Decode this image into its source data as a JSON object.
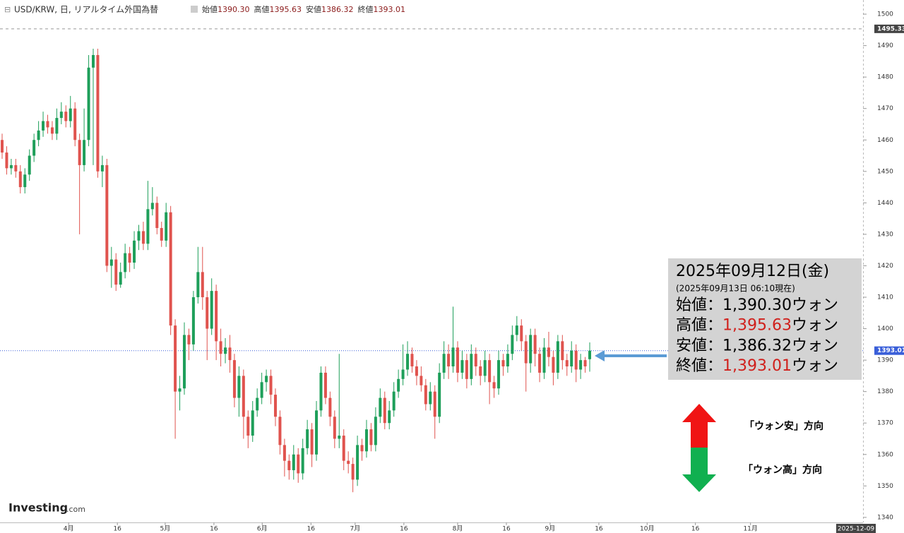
{
  "chart_data": {
    "type": "candlestick",
    "header": {
      "symbol": "USD/KRW, 日, リアルタイム外国為替",
      "fields": [
        {
          "label": "始値",
          "value": "1390.30"
        },
        {
          "label": "高値",
          "value": "1395.63"
        },
        {
          "label": "安値",
          "value": "1386.32"
        },
        {
          "label": "終値",
          "value": "1393.01"
        }
      ]
    },
    "up_color": "#1e9f5a",
    "down_color": "#e0534e",
    "ylim": [
      1338.4,
      1504.5
    ],
    "yticks": [
      1340,
      1350,
      1360,
      1370,
      1380,
      1390,
      1400,
      1410,
      1420,
      1430,
      1440,
      1450,
      1460,
      1470,
      1480,
      1490,
      1500
    ],
    "xlim": [
      -0.465,
      189
    ],
    "xticks": [
      {
        "value": 14.6,
        "label": "4月"
      },
      {
        "value": 25.3,
        "label": "16"
      },
      {
        "value": 35.8,
        "label": "5月"
      },
      {
        "value": 46.5,
        "label": "16"
      },
      {
        "value": 57.1,
        "label": "6月"
      },
      {
        "value": 67.8,
        "label": "16"
      },
      {
        "value": 77.5,
        "label": "7月"
      },
      {
        "value": 88.2,
        "label": "16"
      },
      {
        "value": 100,
        "label": "8月"
      },
      {
        "value": 110.7,
        "label": "16"
      },
      {
        "value": 120.3,
        "label": "9月"
      },
      {
        "value": 131,
        "label": "16"
      },
      {
        "value": 141.6,
        "label": "10月"
      },
      {
        "value": 152.2,
        "label": "16"
      },
      {
        "value": 164.3,
        "label": "11月"
      }
    ],
    "date_label": "2025-12-09",
    "price_lines": [
      {
        "value": 1495.33,
        "color": "#999999",
        "dash": "4,4",
        "label_bg": "#444444"
      },
      {
        "value": 1393.01,
        "color": "#3a5fd9",
        "dash": "1,2",
        "label_bg": "#3a5fd9"
      }
    ],
    "candles": [
      [
        1460,
        1462,
        1454,
        1456
      ],
      [
        1456,
        1458,
        1449,
        1451
      ],
      [
        1451,
        1454,
        1449,
        1452
      ],
      [
        1452,
        1454,
        1448,
        1450
      ],
      [
        1450,
        1452,
        1443,
        1445
      ],
      [
        1445,
        1451,
        1443,
        1449
      ],
      [
        1449,
        1457,
        1447,
        1455
      ],
      [
        1455,
        1462,
        1453,
        1460
      ],
      [
        1460,
        1466,
        1458,
        1463
      ],
      [
        1463,
        1469,
        1461,
        1466
      ],
      [
        1466,
        1468,
        1462,
        1464
      ],
      [
        1464,
        1466,
        1460,
        1462
      ],
      [
        1462,
        1470,
        1460,
        1467
      ],
      [
        1467,
        1472,
        1465,
        1469
      ],
      [
        1469,
        1471,
        1464,
        1466
      ],
      [
        1466,
        1474,
        1464,
        1470
      ],
      [
        1470,
        1472,
        1458,
        1460
      ],
      [
        1460,
        1462,
        1430,
        1452
      ],
      [
        1452,
        1470,
        1450,
        1460
      ],
      [
        1460,
        1487,
        1458,
        1483
      ],
      [
        1483,
        1489,
        1452,
        1487
      ],
      [
        1487,
        1489,
        1448,
        1450
      ],
      [
        1450,
        1455,
        1445,
        1452
      ],
      [
        1452,
        1454,
        1418,
        1420
      ],
      [
        1420,
        1426,
        1413,
        1422
      ],
      [
        1422,
        1424,
        1412,
        1414
      ],
      [
        1414,
        1421,
        1413,
        1418
      ],
      [
        1418,
        1427,
        1416,
        1424
      ],
      [
        1424,
        1426,
        1418,
        1421
      ],
      [
        1421,
        1431,
        1419,
        1428
      ],
      [
        1428,
        1433,
        1425,
        1431
      ],
      [
        1431,
        1434,
        1425,
        1427
      ],
      [
        1427,
        1447,
        1425,
        1438
      ],
      [
        1438,
        1445,
        1436,
        1440
      ],
      [
        1440,
        1442,
        1430,
        1432
      ],
      [
        1432,
        1434,
        1426,
        1428
      ],
      [
        1428,
        1440,
        1426,
        1437
      ],
      [
        1437,
        1439,
        1398,
        1401
      ],
      [
        1401,
        1403,
        1365,
        1380
      ],
      [
        1380,
        1385,
        1374,
        1381
      ],
      [
        1381,
        1402,
        1379,
        1398
      ],
      [
        1398,
        1400,
        1390,
        1395
      ],
      [
        1395,
        1412,
        1393,
        1410
      ],
      [
        1410,
        1426,
        1408,
        1418
      ],
      [
        1418,
        1426,
        1406,
        1410
      ],
      [
        1410,
        1412,
        1390,
        1400
      ],
      [
        1400,
        1416,
        1398,
        1412
      ],
      [
        1412,
        1414,
        1390,
        1396
      ],
      [
        1396,
        1400,
        1388,
        1392
      ],
      [
        1392,
        1397,
        1389,
        1394
      ],
      [
        1394,
        1398,
        1386,
        1390
      ],
      [
        1390,
        1392,
        1375,
        1378
      ],
      [
        1378,
        1388,
        1372,
        1385
      ],
      [
        1385,
        1387,
        1365,
        1372
      ],
      [
        1372,
        1374,
        1362,
        1366
      ],
      [
        1366,
        1377,
        1364,
        1374
      ],
      [
        1374,
        1381,
        1372,
        1378
      ],
      [
        1378,
        1386,
        1376,
        1383
      ],
      [
        1383,
        1387,
        1380,
        1385
      ],
      [
        1385,
        1387,
        1376,
        1379
      ],
      [
        1379,
        1381,
        1369,
        1372
      ],
      [
        1372,
        1374,
        1360,
        1363
      ],
      [
        1363,
        1365,
        1353,
        1358
      ],
      [
        1358,
        1360,
        1352,
        1355
      ],
      [
        1355,
        1363,
        1352,
        1360
      ],
      [
        1360,
        1362,
        1351,
        1354
      ],
      [
        1354,
        1365,
        1352,
        1362
      ],
      [
        1362,
        1371,
        1360,
        1368
      ],
      [
        1368,
        1370,
        1356,
        1360
      ],
      [
        1360,
        1377,
        1358,
        1374
      ],
      [
        1374,
        1388,
        1372,
        1386
      ],
      [
        1386,
        1388,
        1376,
        1378
      ],
      [
        1378,
        1380,
        1369,
        1372
      ],
      [
        1372,
        1374,
        1362,
        1365
      ],
      [
        1365,
        1392,
        1362,
        1366
      ],
      [
        1366,
        1368,
        1355,
        1358
      ],
      [
        1358,
        1361,
        1354,
        1357
      ],
      [
        1357,
        1359,
        1348,
        1352
      ],
      [
        1352,
        1366,
        1350,
        1363
      ],
      [
        1363,
        1365,
        1358,
        1361
      ],
      [
        1361,
        1371,
        1359,
        1368
      ],
      [
        1368,
        1370,
        1361,
        1363
      ],
      [
        1363,
        1375,
        1361,
        1372
      ],
      [
        1372,
        1381,
        1370,
        1378
      ],
      [
        1378,
        1380,
        1368,
        1370
      ],
      [
        1370,
        1377,
        1368,
        1374
      ],
      [
        1374,
        1383,
        1372,
        1380
      ],
      [
        1380,
        1387,
        1378,
        1384
      ],
      [
        1384,
        1395,
        1382,
        1387
      ],
      [
        1387,
        1396,
        1385,
        1392
      ],
      [
        1392,
        1394,
        1386,
        1388
      ],
      [
        1388,
        1390,
        1382,
        1385
      ],
      [
        1385,
        1388,
        1380,
        1382
      ],
      [
        1382,
        1384,
        1374,
        1376
      ],
      [
        1376,
        1383,
        1374,
        1380
      ],
      [
        1380,
        1382,
        1365,
        1372
      ],
      [
        1372,
        1389,
        1370,
        1386
      ],
      [
        1386,
        1396,
        1384,
        1392
      ],
      [
        1392,
        1395,
        1384,
        1388
      ],
      [
        1388,
        1407,
        1386,
        1394
      ],
      [
        1394,
        1396,
        1383,
        1386
      ],
      [
        1386,
        1393,
        1384,
        1390
      ],
      [
        1390,
        1392,
        1381,
        1384
      ],
      [
        1384,
        1395,
        1382,
        1392
      ],
      [
        1392,
        1394,
        1385,
        1388
      ],
      [
        1388,
        1390,
        1382,
        1385
      ],
      [
        1385,
        1393,
        1383,
        1390
      ],
      [
        1390,
        1392,
        1376,
        1383
      ],
      [
        1383,
        1385,
        1378,
        1381
      ],
      [
        1381,
        1393,
        1379,
        1390
      ],
      [
        1390,
        1392,
        1385,
        1388
      ],
      [
        1388,
        1395,
        1386,
        1392
      ],
      [
        1392,
        1401,
        1390,
        1398
      ],
      [
        1398,
        1404,
        1396,
        1401
      ],
      [
        1401,
        1403,
        1393,
        1396
      ],
      [
        1396,
        1398,
        1380,
        1389
      ],
      [
        1389,
        1400,
        1386,
        1398
      ],
      [
        1398,
        1400,
        1388,
        1392
      ],
      [
        1392,
        1394,
        1383,
        1386
      ],
      [
        1386,
        1397,
        1384,
        1394
      ],
      [
        1394,
        1399,
        1388,
        1391
      ],
      [
        1391,
        1393,
        1382,
        1386
      ],
      [
        1386,
        1398,
        1384,
        1396
      ],
      [
        1396,
        1398,
        1387,
        1390
      ],
      [
        1390,
        1392,
        1385,
        1388
      ],
      [
        1388,
        1396,
        1386,
        1393
      ],
      [
        1393,
        1395,
        1383,
        1387
      ],
      [
        1387,
        1392,
        1384,
        1390
      ],
      [
        1390,
        1391,
        1386,
        1388
      ],
      [
        1390.3,
        1395.63,
        1386.32,
        1393.01
      ]
    ],
    "info_box": {
      "title": "2025年09月12日(金)",
      "note": "(2025年09月13日 06:10現在)",
      "rows": [
        {
          "label": "始値：",
          "value": "1,390.30",
          "unit": "ウォン",
          "color": "#000000"
        },
        {
          "label": "高値：",
          "value": "1,395.63",
          "unit": "ウォン",
          "color": "#d0201c"
        },
        {
          "label": "安値：",
          "value": "1,386.32",
          "unit": "ウォン",
          "color": "#000000"
        },
        {
          "label": "終値：",
          "value": "1,393.01",
          "unit": "ウォン",
          "color": "#d0201c"
        }
      ]
    },
    "annotations": {
      "up": "「ウォン安」方向",
      "down": "「ウォン高」方向"
    },
    "logo": {
      "main": "Investing",
      "suffix": ".com"
    }
  }
}
